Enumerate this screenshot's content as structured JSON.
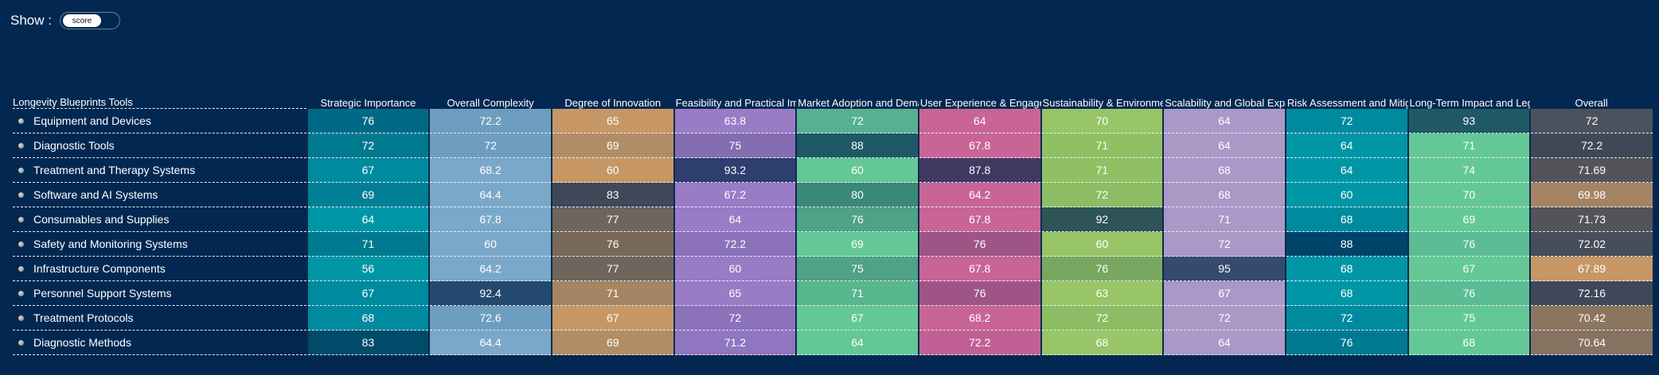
{
  "show": {
    "label": "Show :",
    "toggle_value": "score"
  },
  "table": {
    "row_header": "Longevity Blueprints Tools",
    "columns": [
      "Strategic Importance",
      "Overall Complexity",
      "Degree of Innovation",
      "Feasibility and Practical Implementation",
      "Market Adoption and Demand",
      "User Experience & Engagement",
      "Sustainability & Environmental Impact",
      "Scalability and Global Expansion",
      "Risk Assessment and Mitigation",
      "Long-Term Impact and Legacy",
      "Overall"
    ],
    "rows": [
      {
        "name": "Equipment and Devices",
        "values": [
          "76",
          "72.2",
          "65",
          "63.8",
          "72",
          "64",
          "70",
          "64",
          "72",
          "93",
          "72"
        ],
        "colors": [
          "#006a86",
          "#6e9ebf",
          "#c69765",
          "#9a7bc6",
          "#56b190",
          "#c86496",
          "#97c567",
          "#aa98c7",
          "#008a9e",
          "#1f5966",
          "#4b525e"
        ]
      },
      {
        "name": "Diagnostic Tools",
        "values": [
          "72",
          "72",
          "69",
          "75",
          "88",
          "67.8",
          "71",
          "64",
          "64",
          "71",
          "72.2"
        ],
        "colors": [
          "#007a90",
          "#6e9ebf",
          "#b18d65",
          "#836db0",
          "#1e5a66",
          "#c86496",
          "#90c064",
          "#aa98c7",
          "#0096a6",
          "#64c896",
          "#3f4858"
        ]
      },
      {
        "name": "Treatment and Therapy Systems",
        "values": [
          "67",
          "68.2",
          "60",
          "93.2",
          "60",
          "87.8",
          "71",
          "68",
          "64",
          "74",
          "71.69"
        ],
        "colors": [
          "#008a9e",
          "#7aa8c8",
          "#c69765",
          "#2e3e6e",
          "#64c896",
          "#3e3a62",
          "#90c064",
          "#aa98c7",
          "#0096a6",
          "#64c896",
          "#53535a"
        ]
      },
      {
        "name": "Software and AI Systems",
        "values": [
          "69",
          "64.4",
          "83",
          "67.2",
          "80",
          "64.2",
          "72",
          "68",
          "60",
          "70",
          "69.98"
        ],
        "colors": [
          "#007f95",
          "#7aa8c8",
          "#3e4858",
          "#9a7bc6",
          "#3a8878",
          "#c86496",
          "#8cbd64",
          "#aa98c7",
          "#0096a6",
          "#64c896",
          "#a48462"
        ]
      },
      {
        "name": "Consumables and Supplies",
        "values": [
          "64",
          "67.8",
          "77",
          "64",
          "76",
          "67.8",
          "92",
          "71",
          "68",
          "69",
          "71.73"
        ],
        "colors": [
          "#0096a6",
          "#7aa8c8",
          "#6e665c",
          "#9a7bc6",
          "#4ea286",
          "#c86496",
          "#2e5456",
          "#aa98c7",
          "#008a9e",
          "#64c896",
          "#53535a"
        ]
      },
      {
        "name": "Safety and Monitoring Systems",
        "values": [
          "71",
          "60",
          "76",
          "72.2",
          "69",
          "76",
          "60",
          "72",
          "88",
          "76",
          "72.02"
        ],
        "colors": [
          "#007a90",
          "#7aa8c8",
          "#786858",
          "#8c72bb",
          "#64c896",
          "#9e5585",
          "#97c567",
          "#aa98c7",
          "#00446a",
          "#5cbc94",
          "#474e5a"
        ]
      },
      {
        "name": "Infrastructure Components",
        "values": [
          "56",
          "64.2",
          "77",
          "60",
          "75",
          "67.8",
          "76",
          "95",
          "68",
          "67",
          "67.89"
        ],
        "colors": [
          "#0096a6",
          "#7aa8c8",
          "#6e665c",
          "#9a7bc6",
          "#4ea286",
          "#c86496",
          "#78a860",
          "#364a70",
          "#0096a6",
          "#64c896",
          "#c69765"
        ]
      },
      {
        "name": "Personnel Support Systems",
        "values": [
          "67",
          "92.4",
          "71",
          "65",
          "71",
          "76",
          "63",
          "67",
          "68",
          "76",
          "72.16"
        ],
        "colors": [
          "#008a9e",
          "#234a6e",
          "#a48462",
          "#9a7bc6",
          "#58b68e",
          "#9e5585",
          "#97c567",
          "#aa98c7",
          "#0096a6",
          "#5cbc94",
          "#3f4858"
        ]
      },
      {
        "name": "Treatment Protocols",
        "values": [
          "68",
          "72.6",
          "67",
          "72",
          "67",
          "68.2",
          "72",
          "72",
          "72",
          "75",
          "70.42"
        ],
        "colors": [
          "#008a9e",
          "#6e9ebf",
          "#c69765",
          "#8c72bb",
          "#64c896",
          "#c86496",
          "#8cbd64",
          "#aa98c7",
          "#008a9e",
          "#64c896",
          "#8c755e"
        ]
      },
      {
        "name": "Diagnostic Methods",
        "values": [
          "83",
          "64.4",
          "69",
          "71.2",
          "64",
          "72.2",
          "68",
          "64",
          "76",
          "68",
          "70.64"
        ],
        "colors": [
          "#004a6a",
          "#7aa8c8",
          "#b18d65",
          "#9076c0",
          "#64c896",
          "#c06094",
          "#97c567",
          "#aa98c7",
          "#007a90",
          "#64c896",
          "#867260"
        ]
      }
    ]
  }
}
